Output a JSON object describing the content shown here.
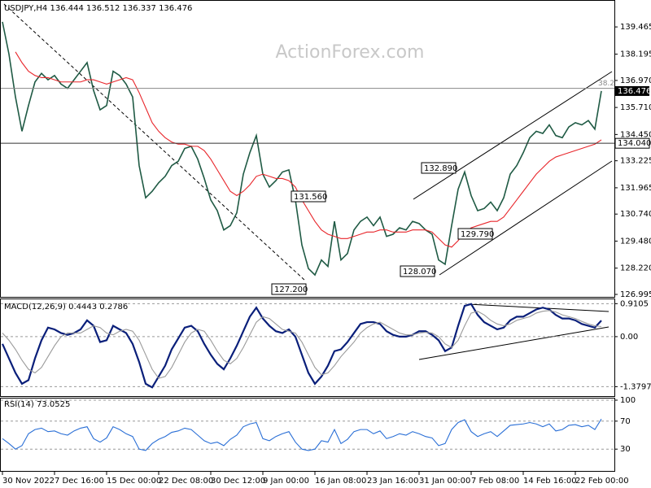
{
  "chart_data": [
    {
      "type": "line",
      "title": "USDJPY,H4 136.444 136.512 136.337 136.476",
      "watermark": "ActionForex.com",
      "categories": [
        "30 Nov 2022",
        null,
        null,
        null,
        null,
        null,
        null,
        null,
        "7 Dec 16:00",
        null,
        null,
        null,
        null,
        null,
        null,
        null,
        "15 Dec 00:00",
        null,
        null,
        null,
        null,
        null,
        null,
        null,
        "22 Dec 08:00",
        null,
        null,
        null,
        null,
        null,
        null,
        null,
        "30 Dec 12:00",
        null,
        null,
        null,
        null,
        null,
        null,
        null,
        "9 Jan 00:00",
        null,
        null,
        null,
        null,
        null,
        null,
        null,
        "16 Jan 08:00",
        null,
        null,
        null,
        null,
        null,
        null,
        null,
        "23 Jan 16:00",
        null,
        null,
        null,
        null,
        null,
        null,
        null,
        "31 Jan 00:00",
        null,
        null,
        null,
        null,
        null,
        null,
        null,
        "7 Feb 08:00",
        null,
        null,
        null,
        null,
        null,
        null,
        null,
        "14 Feb 16:00",
        null,
        null,
        null,
        null,
        null,
        null,
        null,
        "22 Feb 00:00",
        null,
        null,
        null,
        null
      ],
      "series": [
        {
          "color": "#1f5a44",
          "values": [
            139.7,
            138.2,
            136.2,
            134.6,
            135.8,
            136.9,
            137.3,
            137.0,
            137.2,
            136.8,
            136.6,
            137.0,
            137.4,
            137.8,
            136.5,
            135.6,
            135.8,
            137.4,
            137.2,
            136.8,
            136.2,
            133.0,
            131.5,
            131.8,
            132.2,
            132.5,
            133.0,
            133.2,
            133.8,
            133.9,
            133.3,
            132.4,
            131.4,
            130.9,
            130.0,
            130.2,
            130.8,
            132.6,
            133.6,
            134.4,
            132.6,
            132.0,
            132.3,
            132.7,
            132.8,
            131.4,
            129.3,
            128.2,
            127.9,
            128.6,
            128.3,
            130.4,
            128.6,
            128.9,
            130.0,
            130.4,
            130.6,
            130.2,
            130.6,
            129.7,
            129.8,
            130.1,
            130.0,
            130.4,
            130.3,
            130.0,
            129.8,
            128.6,
            128.4,
            130.2,
            131.9,
            132.7,
            131.6,
            130.9,
            131.0,
            131.3,
            130.9,
            131.5,
            132.6,
            133.0,
            133.6,
            134.3,
            134.6,
            134.5,
            134.9,
            134.4,
            134.3,
            134.8,
            135.0,
            134.9,
            135.1,
            134.7,
            136.476
          ]
        },
        {
          "color": "#e8262b",
          "values": [
            null,
            null,
            138.3,
            137.8,
            137.4,
            137.2,
            137.1,
            137.1,
            137.0,
            136.9,
            136.9,
            136.9,
            136.9,
            137.0,
            137.0,
            136.9,
            136.8,
            136.9,
            137.0,
            137.1,
            137.0,
            136.4,
            135.7,
            135.0,
            134.6,
            134.3,
            134.1,
            134.0,
            134.0,
            133.9,
            133.9,
            133.7,
            133.3,
            132.8,
            132.3,
            131.8,
            131.6,
            131.8,
            132.1,
            132.5,
            132.6,
            132.5,
            132.4,
            132.4,
            132.3,
            132.0,
            131.4,
            130.9,
            130.4,
            130.0,
            129.8,
            129.7,
            129.6,
            129.6,
            129.7,
            129.8,
            129.9,
            129.9,
            130.0,
            130.0,
            129.9,
            129.9,
            129.9,
            130.0,
            130.0,
            130.0,
            129.9,
            129.6,
            129.3,
            129.2,
            129.5,
            129.9,
            130.1,
            130.2,
            130.3,
            130.4,
            130.4,
            130.6,
            131.0,
            131.4,
            131.8,
            132.2,
            132.6,
            132.9,
            133.2,
            133.4,
            133.5,
            133.6,
            133.7,
            133.8,
            133.9,
            134.0,
            134.2
          ]
        }
      ],
      "ylim": [
        126.88,
        140.72
      ],
      "yticks": [
        139.465,
        138.195,
        {
          "value": 136.97,
          "label": "136.970"
        },
        {
          "value": 135.71,
          "label": "135.710"
        },
        {
          "value": 134.45,
          "label": "134.450"
        },
        133.225,
        131.965,
        {
          "value": 130.74,
          "label": "130.740"
        },
        {
          "value": 129.48,
          "label": "129.480"
        },
        {
          "value": 128.22,
          "label": "128.220"
        },
        126.995
      ],
      "levels": [
        {
          "value": 136.6,
          "label": "38.2",
          "color": "#888888"
        },
        {
          "value": 134.04,
          "label": "134.040",
          "color": "#333333"
        }
      ],
      "last_price": {
        "value": 136.476,
        "label": "136.476"
      },
      "annotations": [
        "132.890",
        "131.560",
        "129.790",
        "128.070",
        "127.200"
      ]
    },
    {
      "type": "line",
      "title": "MACD(12,26,9) 0.4443 0.2786",
      "series": [
        {
          "color": "#0a1f7a",
          "values": [
            -0.2,
            -0.6,
            -1.0,
            -1.3,
            -1.2,
            -0.6,
            -0.1,
            0.25,
            0.2,
            0.1,
            0.05,
            0.1,
            0.2,
            0.45,
            0.3,
            -0.15,
            -0.1,
            0.3,
            0.2,
            0.1,
            -0.2,
            -0.7,
            -1.3,
            -1.4,
            -1.1,
            -0.8,
            -0.35,
            -0.05,
            0.25,
            0.3,
            0.15,
            -0.2,
            -0.5,
            -0.75,
            -0.9,
            -0.6,
            -0.25,
            0.15,
            0.55,
            0.8,
            0.5,
            0.3,
            0.15,
            0.1,
            0.2,
            0.0,
            -0.5,
            -1.0,
            -1.3,
            -1.1,
            -0.8,
            -0.4,
            -0.35,
            -0.15,
            0.1,
            0.35,
            0.4,
            0.4,
            0.35,
            0.15,
            0.05,
            0.0,
            0.0,
            0.05,
            0.15,
            0.15,
            0.05,
            -0.1,
            -0.4,
            -0.3,
            0.3,
            0.85,
            0.9,
            0.6,
            0.4,
            0.3,
            0.2,
            0.25,
            0.45,
            0.55,
            0.55,
            0.65,
            0.75,
            0.8,
            0.75,
            0.6,
            0.5,
            0.5,
            0.45,
            0.35,
            0.3,
            0.25,
            0.4443
          ]
        },
        {
          "color": "#9a9a9a",
          "values": [
            0.1,
            -0.1,
            -0.35,
            -0.65,
            -0.9,
            -1.0,
            -0.85,
            -0.55,
            -0.25,
            0.0,
            0.1,
            0.1,
            0.1,
            0.2,
            0.3,
            0.25,
            0.1,
            0.05,
            0.15,
            0.2,
            0.15,
            -0.1,
            -0.5,
            -0.9,
            -1.15,
            -1.1,
            -0.85,
            -0.5,
            -0.15,
            0.1,
            0.2,
            0.15,
            -0.1,
            -0.4,
            -0.65,
            -0.75,
            -0.6,
            -0.3,
            0.05,
            0.4,
            0.55,
            0.5,
            0.35,
            0.2,
            0.15,
            0.1,
            -0.15,
            -0.5,
            -0.85,
            -1.05,
            -1.0,
            -0.8,
            -0.55,
            -0.35,
            -0.15,
            0.1,
            0.25,
            0.35,
            0.4,
            0.3,
            0.2,
            0.1,
            0.05,
            0.05,
            0.1,
            0.12,
            0.1,
            0.0,
            -0.2,
            -0.3,
            -0.1,
            0.3,
            0.65,
            0.7,
            0.6,
            0.45,
            0.35,
            0.3,
            0.35,
            0.45,
            0.5,
            0.55,
            0.65,
            0.7,
            0.72,
            0.68,
            0.6,
            0.55,
            0.5,
            0.42,
            0.35,
            0.3,
            0.2786
          ]
        }
      ],
      "ylim": [
        -1.64,
        1.03
      ],
      "yticks": [
        0.9105,
        {
          "value": 0,
          "label": "0.00"
        },
        -1.3797
      ]
    },
    {
      "type": "line",
      "title": "RSI(14) 73.0525",
      "series": [
        {
          "color": "#2a6fd6",
          "values": [
            45,
            38,
            30,
            35,
            52,
            58,
            60,
            55,
            56,
            52,
            50,
            56,
            60,
            62,
            45,
            40,
            46,
            62,
            58,
            52,
            48,
            30,
            28,
            38,
            44,
            48,
            54,
            56,
            60,
            58,
            50,
            42,
            38,
            40,
            35,
            44,
            50,
            62,
            66,
            68,
            45,
            42,
            48,
            52,
            55,
            40,
            30,
            28,
            30,
            42,
            40,
            58,
            38,
            44,
            55,
            58,
            58,
            52,
            56,
            45,
            48,
            52,
            50,
            55,
            52,
            48,
            46,
            35,
            38,
            58,
            68,
            72,
            55,
            48,
            52,
            55,
            48,
            56,
            64,
            65,
            66,
            68,
            66,
            62,
            66,
            56,
            58,
            64,
            65,
            62,
            64,
            58,
            73.0525
          ]
        }
      ],
      "ylim": [
        0,
        100
      ],
      "yticks": [
        100,
        70,
        30
      ]
    }
  ]
}
